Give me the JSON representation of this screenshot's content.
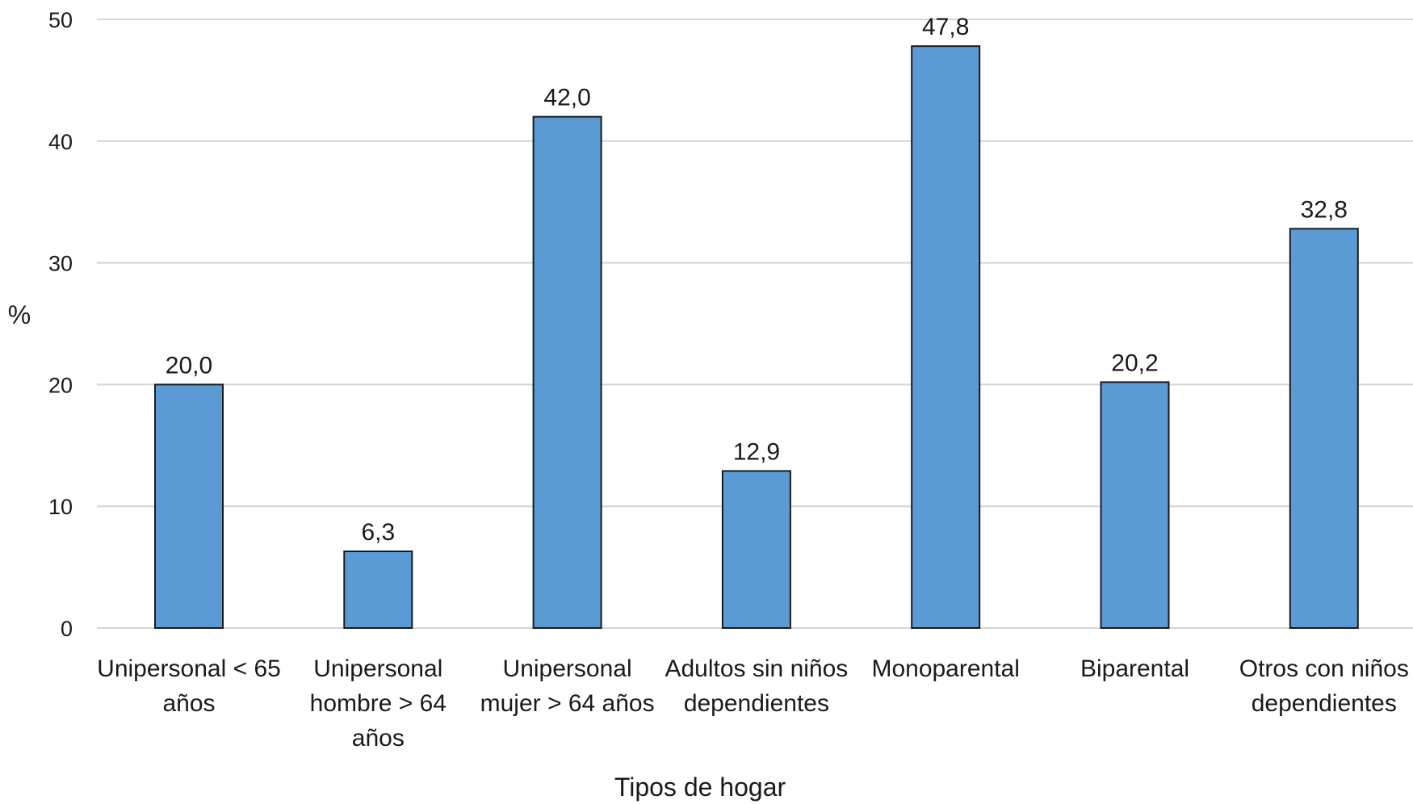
{
  "chart_data": {
    "type": "bar",
    "categories": [
      [
        "Unipersonal < 65",
        "años"
      ],
      [
        "Unipersonal",
        "hombre > 64",
        "años"
      ],
      [
        "Unipersonal",
        "mujer > 64 años"
      ],
      [
        "Adultos sin niños",
        "dependientes"
      ],
      [
        "Monoparental"
      ],
      [
        "Biparental"
      ],
      [
        "Otros con niños",
        "dependientes"
      ]
    ],
    "values": [
      20.0,
      6.3,
      42.0,
      12.9,
      47.8,
      20.2,
      32.8
    ],
    "value_labels": [
      "20,0",
      "6,3",
      "42,0",
      "12,9",
      "47,8",
      "20,2",
      "32,8"
    ],
    "title": "",
    "xlabel": "Tipos de hogar",
    "ylabel": "%",
    "ylim": [
      0,
      50
    ],
    "yticks": [
      0,
      10,
      20,
      30,
      40,
      50
    ],
    "grid": true,
    "legend": "none",
    "bar_color": "#5b9bd5"
  }
}
